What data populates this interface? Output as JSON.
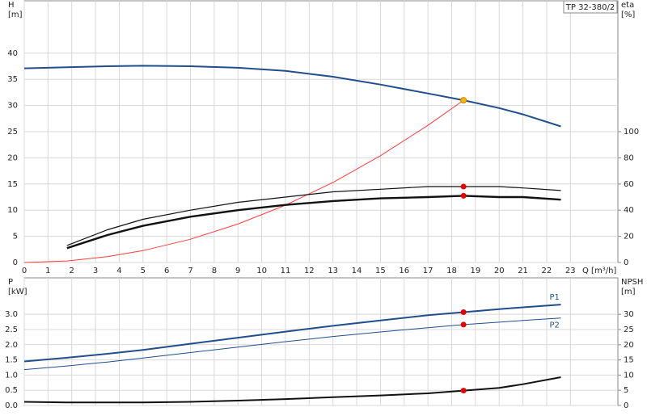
{
  "chart_data": [
    {
      "type": "line",
      "legend_box": "TP 32-380/2",
      "y_label": [
        "H",
        "[m]"
      ],
      "y2_label": [
        "eta",
        "[%]"
      ],
      "x_label": "Q [m³/h]",
      "x": [
        0,
        1.8,
        3.5,
        5,
        7,
        9,
        11,
        13,
        15,
        17,
        18.5,
        20,
        21,
        22.6
      ],
      "xlim": [
        0,
        25
      ],
      "xticks": [
        0,
        1,
        2,
        3,
        4,
        5,
        6,
        7,
        8,
        9,
        10,
        11,
        12,
        13,
        14,
        15,
        16,
        17,
        18,
        19,
        20,
        21,
        22,
        23
      ],
      "x_tick_labels": true,
      "ylim": [
        0,
        50
      ],
      "yticks": [
        0,
        5,
        10,
        15,
        20,
        25,
        30,
        35,
        40
      ],
      "y2lim": [
        0,
        200
      ],
      "y2ticks": [
        0,
        20,
        40,
        60,
        80,
        100
      ],
      "grid": true,
      "series": [
        {
          "color": "#1f4e8c",
          "width": 2,
          "values": [
            37.1,
            37.3,
            37.5,
            37.6,
            37.5,
            37.2,
            36.6,
            35.5,
            34.0,
            32.3,
            31.0,
            29.5,
            28.3,
            26.0
          ]
        },
        {
          "color": "#ff3b3b",
          "width": 1,
          "values": [
            0,
            0.29,
            1.11,
            2.27,
            4.44,
            7.34,
            10.96,
            15.3,
            20.4,
            26.2,
            31.0,
            null,
            null,
            null
          ]
        },
        {
          "color": "#111111",
          "width": 1.2,
          "axis": "y2",
          "values": [
            null,
            13,
            25,
            33,
            40,
            46,
            50,
            54,
            56,
            58,
            58,
            58,
            57,
            55
          ]
        },
        {
          "color": "#111111",
          "width": 2.4,
          "axis": "y2",
          "values": [
            null,
            11,
            21,
            28,
            35,
            40,
            44,
            47,
            49,
            50,
            51,
            50,
            50,
            48
          ]
        }
      ],
      "points": [
        {
          "x": 18.5,
          "y": 31,
          "color": "#f5b700"
        },
        {
          "x": 18.5,
          "y": 58,
          "axis": "y2",
          "color": "#e60000"
        },
        {
          "x": 18.5,
          "y": 51,
          "axis": "y2",
          "color": "#e60000"
        }
      ]
    },
    {
      "type": "line",
      "y_label": [
        "P",
        "[kW]"
      ],
      "y2_label": [
        "NPSH",
        "[m]"
      ],
      "x": [
        0,
        1.8,
        3.5,
        5,
        7,
        9,
        11,
        13,
        15,
        17,
        18.5,
        20,
        21,
        22.6
      ],
      "xlim": [
        0,
        25
      ],
      "xticks": [
        0,
        1,
        2,
        3,
        4,
        5,
        6,
        7,
        8,
        9,
        10,
        11,
        12,
        13,
        14,
        15,
        16,
        17,
        18,
        19,
        20,
        21,
        22,
        23
      ],
      "x_tick_labels": false,
      "ylim": [
        0,
        4.2
      ],
      "yticks": [
        {
          "value": 0,
          "label": "0.0"
        },
        0.5,
        {
          "value": 1,
          "label": "1.0"
        },
        1.5,
        {
          "value": 2,
          "label": "2.0"
        },
        2.5,
        {
          "value": 3,
          "label": "3.0"
        }
      ],
      "y2lim": [
        0,
        42
      ],
      "y2ticks": [
        0,
        5,
        10,
        15,
        20,
        25,
        30
      ],
      "grid": true,
      "series": [
        {
          "name": "P1",
          "color": "#1f4e8c",
          "width": 2,
          "values": [
            1.45,
            1.57,
            1.7,
            1.83,
            2.03,
            2.23,
            2.43,
            2.62,
            2.8,
            2.97,
            3.07,
            3.17,
            3.23,
            3.32
          ]
        },
        {
          "name": "P2",
          "color": "#1f4e8c",
          "width": 1,
          "values": [
            1.18,
            1.3,
            1.43,
            1.56,
            1.74,
            1.92,
            2.1,
            2.27,
            2.42,
            2.56,
            2.66,
            2.74,
            2.8,
            2.88
          ]
        },
        {
          "color": "#111111",
          "width": 2,
          "axis": "y2",
          "values": [
            1.2,
            1.0,
            1.0,
            1.0,
            1.2,
            1.6,
            2.1,
            2.7,
            3.3,
            4.0,
            4.9,
            5.8,
            7.0,
            9.3
          ]
        }
      ],
      "points": [
        {
          "x": 18.5,
          "y": 3.07,
          "color": "#e60000"
        },
        {
          "x": 18.5,
          "y": 2.66,
          "color": "#e60000"
        },
        {
          "x": 18.5,
          "y": 4.9,
          "axis": "y2",
          "color": "#e60000"
        }
      ]
    }
  ]
}
